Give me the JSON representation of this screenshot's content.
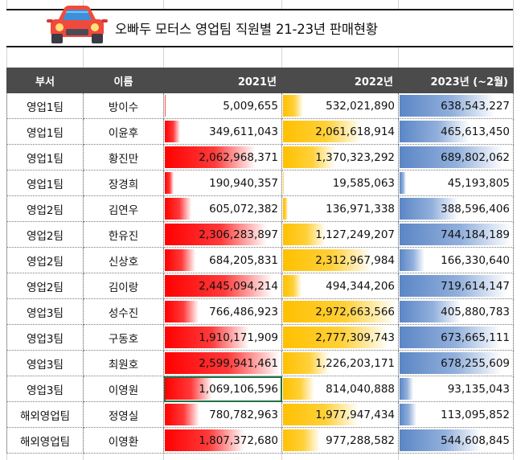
{
  "title": "오빠두 모터스 영업팀 직원별 21-23년 판매현황",
  "colors": {
    "bar_2021": "#ff0000",
    "bar_2022": "#ffc000",
    "bar_2023": "#5b86c6",
    "header_bg": "#4b4b4b"
  },
  "icons": {
    "title_icon": "car-icon"
  },
  "table": {
    "headers": [
      "부서",
      "이름",
      "2021년",
      "2022년",
      "2023년 (~2월)"
    ],
    "rows": [
      {
        "dept": "영업1팀",
        "name": "방이수",
        "y2021": "5,009,655",
        "y2022": "532,021,890",
        "y2023": "638,543,227"
      },
      {
        "dept": "영업1팀",
        "name": "이윤후",
        "y2021": "349,611,043",
        "y2022": "2,061,618,914",
        "y2023": "465,613,450"
      },
      {
        "dept": "영업1팀",
        "name": "황진만",
        "y2021": "2,062,968,371",
        "y2022": "1,370,323,292",
        "y2023": "689,802,062"
      },
      {
        "dept": "영업1팀",
        "name": "장경희",
        "y2021": "190,940,357",
        "y2022": "19,585,063",
        "y2023": "45,193,805"
      },
      {
        "dept": "영업2팀",
        "name": "김연우",
        "y2021": "605,072,382",
        "y2022": "136,971,338",
        "y2023": "388,596,406"
      },
      {
        "dept": "영업2팀",
        "name": "한유진",
        "y2021": "2,306,283,897",
        "y2022": "1,127,249,207",
        "y2023": "744,184,189"
      },
      {
        "dept": "영업2팀",
        "name": "신상호",
        "y2021": "684,205,831",
        "y2022": "2,312,967,984",
        "y2023": "166,330,640"
      },
      {
        "dept": "영업2팀",
        "name": "김이랑",
        "y2021": "2,445,094,214",
        "y2022": "494,344,206",
        "y2023": "719,614,147"
      },
      {
        "dept": "영업3팀",
        "name": "성수진",
        "y2021": "766,486,923",
        "y2022": "2,972,663,566",
        "y2023": "405,880,783"
      },
      {
        "dept": "영업3팀",
        "name": "구동호",
        "y2021": "1,910,171,909",
        "y2022": "2,777,309,743",
        "y2023": "673,665,111"
      },
      {
        "dept": "영업3팀",
        "name": "최원호",
        "y2021": "2,599,941,461",
        "y2022": "1,226,203,171",
        "y2023": "678,255,609"
      },
      {
        "dept": "영업3팀",
        "name": "이영원",
        "y2021": "1,069,106,596",
        "y2022": "814,040,888",
        "y2023": "93,135,043"
      },
      {
        "dept": "해외영업팀",
        "name": "정영실",
        "y2021": "780,782,963",
        "y2022": "1,977,947,434",
        "y2023": "113,095,852"
      },
      {
        "dept": "해외영업팀",
        "name": "이영환",
        "y2021": "1,807,372,680",
        "y2022": "977,288,582",
        "y2023": "544,608,845"
      }
    ],
    "selected_cell": {
      "row": 11,
      "column": "y2021"
    }
  }
}
